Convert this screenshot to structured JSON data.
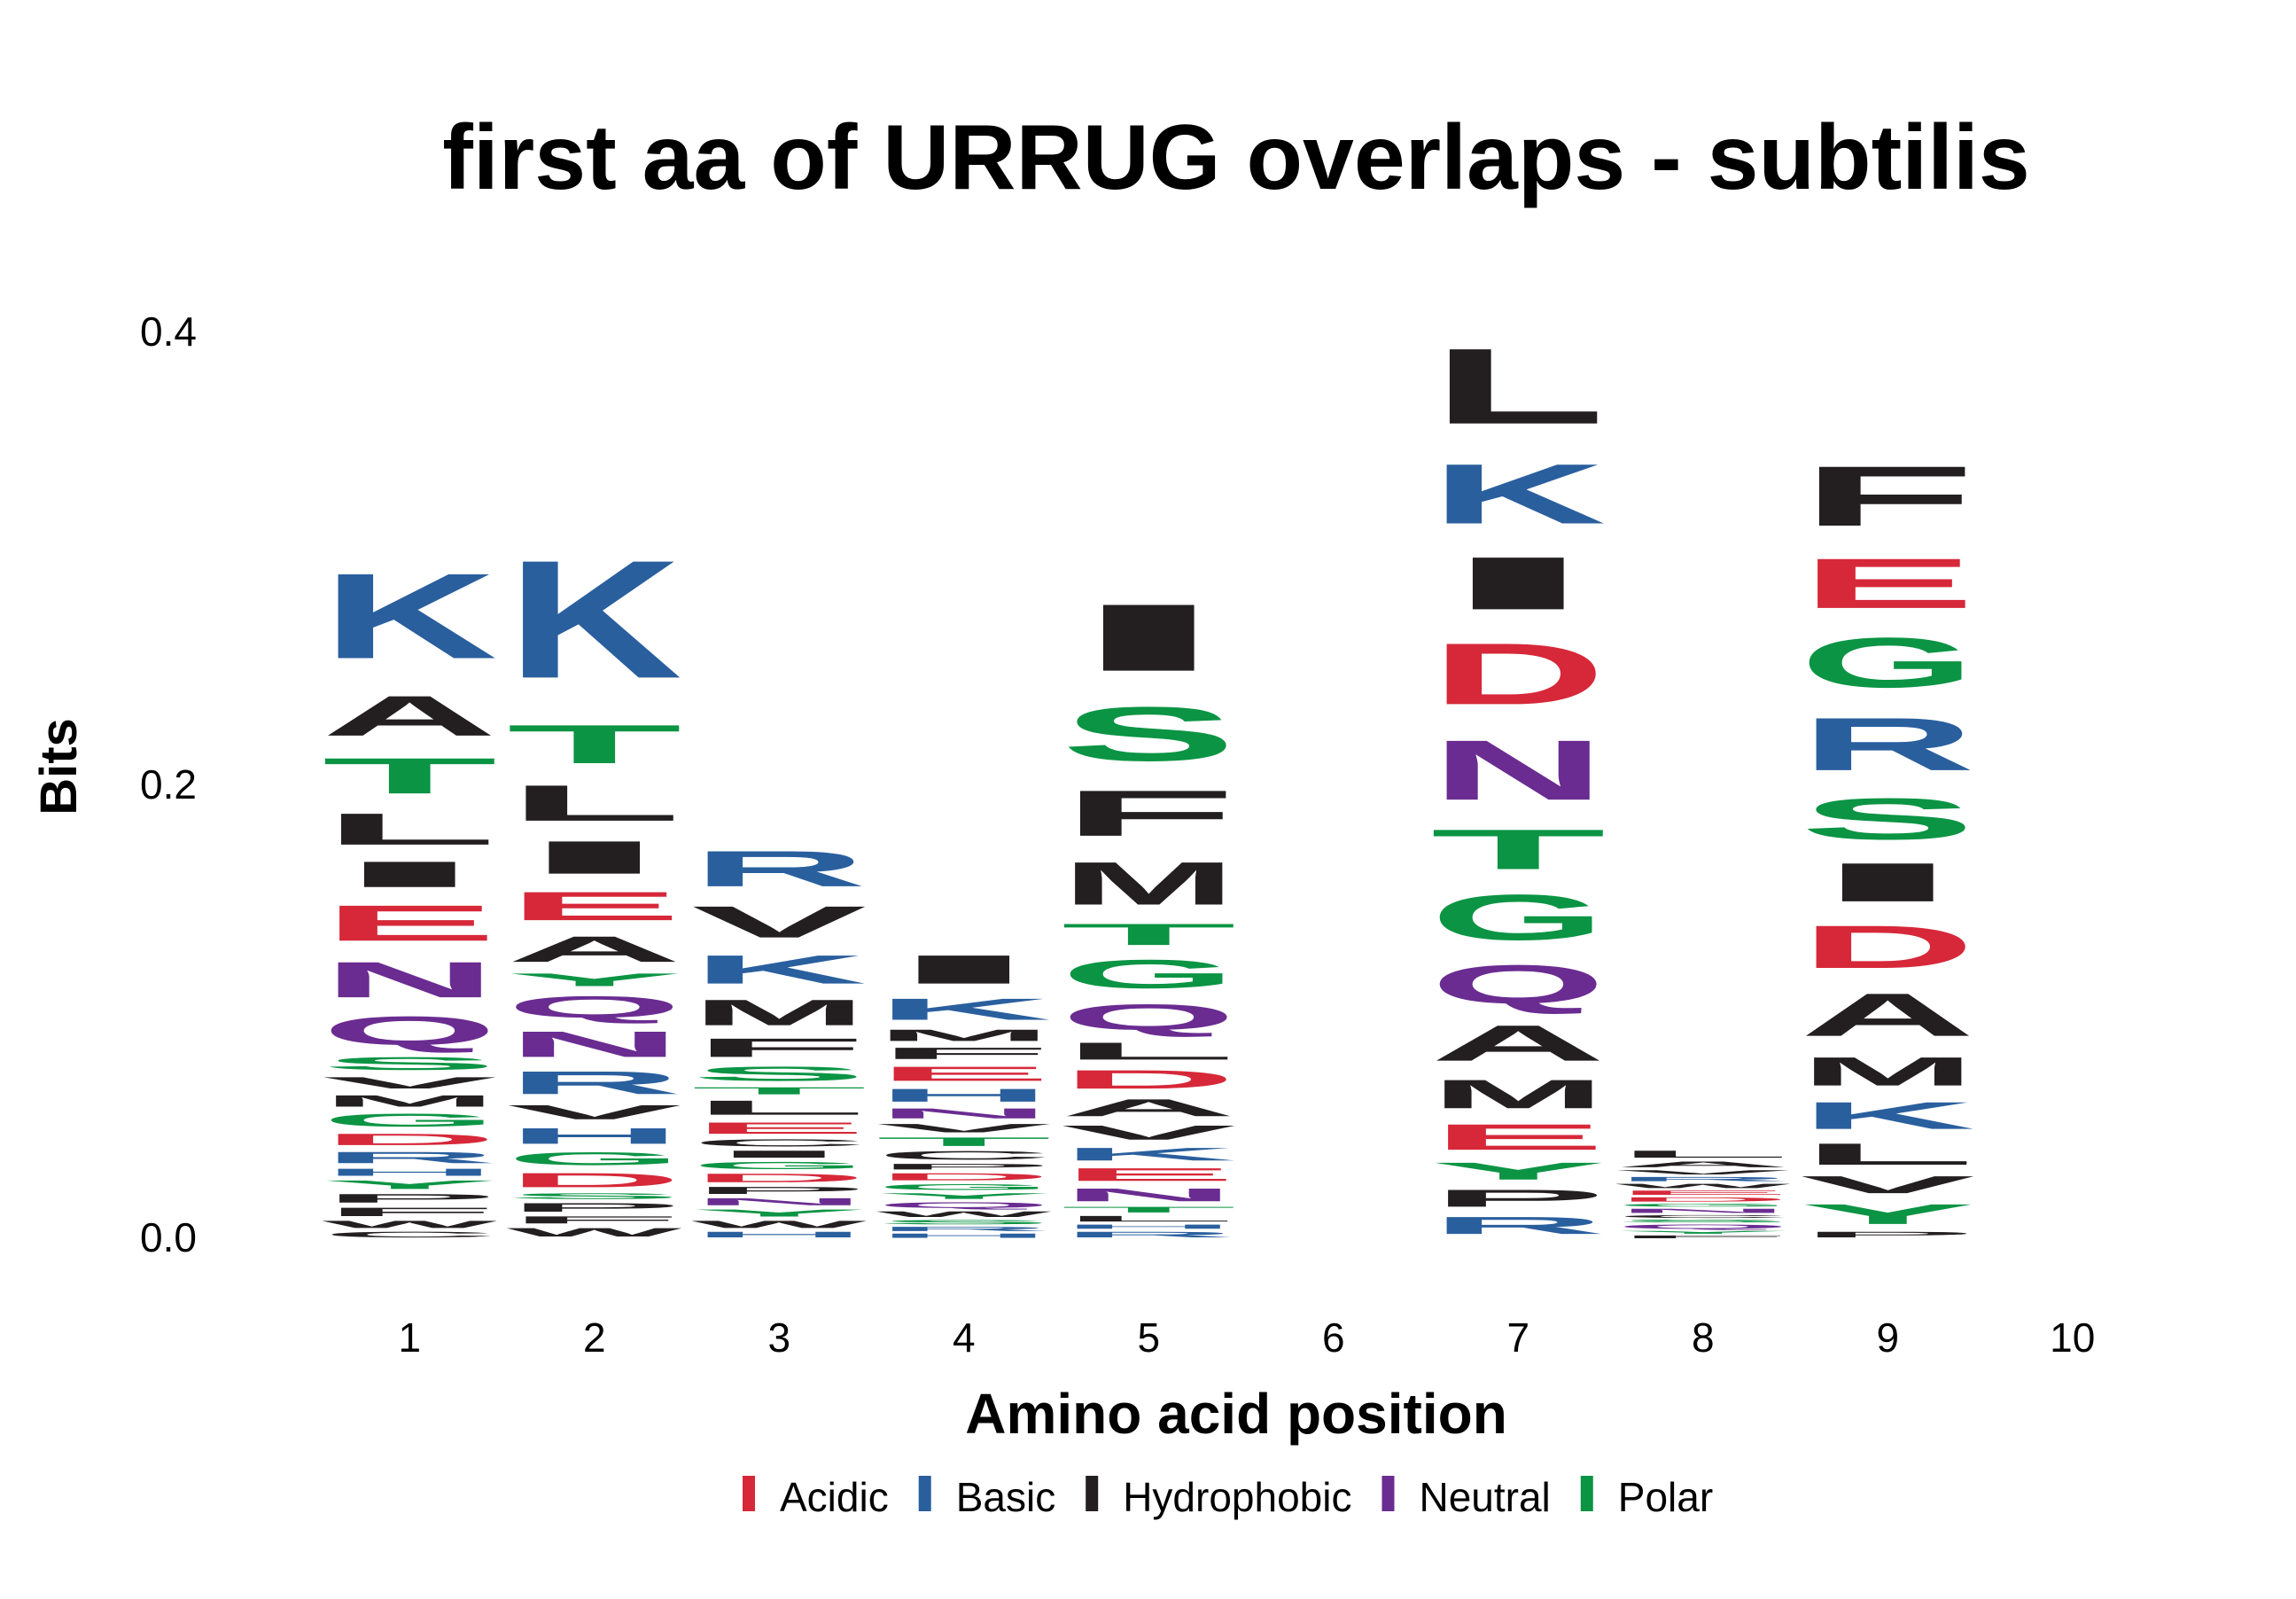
{
  "chart_data": {
    "type": "sequence-logo",
    "title": "first aa of URRUG overlaps - subtilis",
    "xlabel": "Amino acid position",
    "ylabel": "Bits",
    "ylim": [
      0,
      0.42
    ],
    "y_ticks": [
      "0.0",
      "0.2",
      "0.4"
    ],
    "y_tick_values": [
      0.0,
      0.2,
      0.4
    ],
    "x_ticks": [
      "1",
      "2",
      "3",
      "4",
      "5",
      "6",
      "7",
      "8",
      "9",
      "10"
    ],
    "grid": false,
    "legend_position": "bottom",
    "color_scheme": {
      "Acidic": "#d62839",
      "Basic": "#2a5f9e",
      "Hydrophobic": "#231f20",
      "Neutral": "#6a2c91",
      "Polar": "#0b9444"
    },
    "legend": [
      {
        "label": "Acidic",
        "group": "Acidic"
      },
      {
        "label": "Basic",
        "group": "Basic"
      },
      {
        "label": "Hydrophobic",
        "group": "Hydrophobic"
      },
      {
        "label": "Neutral",
        "group": "Neutral"
      },
      {
        "label": "Polar",
        "group": "Polar"
      }
    ],
    "letter_groups": {
      "D": "Acidic",
      "E": "Acidic",
      "H": "Basic",
      "K": "Basic",
      "R": "Basic",
      "A": "Hydrophobic",
      "C": "Hydrophobic",
      "F": "Hydrophobic",
      "I": "Hydrophobic",
      "L": "Hydrophobic",
      "M": "Hydrophobic",
      "P": "Hydrophobic",
      "V": "Hydrophobic",
      "W": "Hydrophobic",
      "N": "Neutral",
      "Q": "Neutral",
      "G": "Polar",
      "S": "Polar",
      "T": "Polar",
      "Y": "Polar"
    },
    "positions": [
      {
        "pos": 1,
        "letters": [
          [
            "C",
            0.004
          ],
          [
            "W",
            0.005
          ],
          [
            "F",
            0.006
          ],
          [
            "P",
            0.006
          ],
          [
            "Y",
            0.006
          ],
          [
            "H",
            0.005
          ],
          [
            "R",
            0.008
          ],
          [
            "D",
            0.008
          ],
          [
            "G",
            0.009
          ],
          [
            "M",
            0.008
          ],
          [
            "V",
            0.008
          ],
          [
            "S",
            0.009
          ],
          [
            "Q",
            0.02
          ],
          [
            "N",
            0.025
          ],
          [
            "E",
            0.025
          ],
          [
            "I",
            0.018
          ],
          [
            "L",
            0.022
          ],
          [
            "T",
            0.025
          ],
          [
            "A",
            0.028
          ],
          [
            "K",
            0.06
          ]
        ]
      },
      {
        "pos": 2,
        "letters": [
          [
            "W",
            0.006
          ],
          [
            "F",
            0.005
          ],
          [
            "P",
            0.006
          ],
          [
            "S",
            0.004
          ],
          [
            "D",
            0.01
          ],
          [
            "G",
            0.009
          ],
          [
            "H",
            0.011
          ],
          [
            "V",
            0.01
          ],
          [
            "R",
            0.016
          ],
          [
            "N",
            0.018
          ],
          [
            "Q",
            0.015
          ],
          [
            "Y",
            0.009
          ],
          [
            "A",
            0.018
          ],
          [
            "E",
            0.02
          ],
          [
            "I",
            0.023
          ],
          [
            "L",
            0.025
          ],
          [
            "T",
            0.027
          ],
          [
            "K",
            0.083
          ]
        ]
      },
      {
        "pos": 3,
        "letters": [
          [
            "H",
            0.004
          ],
          [
            "W",
            0.005
          ],
          [
            "Y",
            0.005
          ],
          [
            "N",
            0.005
          ],
          [
            "P",
            0.005
          ],
          [
            "D",
            0.006
          ],
          [
            "G",
            0.005
          ],
          [
            "I",
            0.005
          ],
          [
            "C",
            0.005
          ],
          [
            "E",
            0.008
          ],
          [
            "L",
            0.01
          ],
          [
            "T",
            0.005
          ],
          [
            "S",
            0.01
          ],
          [
            "F",
            0.013
          ],
          [
            "M",
            0.018
          ],
          [
            "K",
            0.02
          ],
          [
            "V",
            0.022
          ],
          [
            "R",
            0.025
          ]
        ]
      },
      {
        "pos": 4,
        "letters": [
          [
            "H",
            0.003
          ],
          [
            "R",
            0.003
          ],
          [
            "S",
            0.003
          ],
          [
            "W",
            0.004
          ],
          [
            "Q",
            0.004
          ],
          [
            "Y",
            0.004
          ],
          [
            "G",
            0.004
          ],
          [
            "D",
            0.005
          ],
          [
            "P",
            0.004
          ],
          [
            "C",
            0.006
          ],
          [
            "T",
            0.006
          ],
          [
            "V",
            0.006
          ],
          [
            "N",
            0.007
          ],
          [
            "H",
            0.009
          ],
          [
            "E",
            0.01
          ],
          [
            "F",
            0.008
          ],
          [
            "M",
            0.008
          ],
          [
            "K",
            0.015
          ],
          [
            "I",
            0.02
          ]
        ]
      },
      {
        "pos": 5,
        "letters": [
          [
            "R",
            0.004
          ],
          [
            "H",
            0.003
          ],
          [
            "L",
            0.004
          ],
          [
            "T",
            0.004
          ],
          [
            "N",
            0.009
          ],
          [
            "E",
            0.009
          ],
          [
            "K",
            0.009
          ],
          [
            "V",
            0.01
          ],
          [
            "A",
            0.012
          ],
          [
            "D",
            0.013
          ],
          [
            "L",
            0.012
          ],
          [
            "Q",
            0.018
          ],
          [
            "G",
            0.02
          ],
          [
            "T",
            0.015
          ],
          [
            "M",
            0.03
          ],
          [
            "F",
            0.032
          ],
          [
            "S",
            0.038
          ],
          [
            "I",
            0.047
          ]
        ]
      },
      {
        "pos": 6,
        "letters": []
      },
      {
        "pos": 7,
        "letters": [
          [
            "R",
            0.012
          ],
          [
            "P",
            0.012
          ],
          [
            "Y",
            0.012
          ],
          [
            "E",
            0.018
          ],
          [
            "M",
            0.02
          ],
          [
            "A",
            0.025
          ],
          [
            "Q",
            0.027
          ],
          [
            "G",
            0.032
          ],
          [
            "T",
            0.028
          ],
          [
            "N",
            0.042
          ],
          [
            "D",
            0.043
          ],
          [
            "I",
            0.037
          ],
          [
            "K",
            0.042
          ],
          [
            "L",
            0.053
          ]
        ]
      },
      {
        "pos": 8,
        "letters": [
          [
            "F",
            0.002
          ],
          [
            "Y",
            0.002
          ],
          [
            "Q",
            0.003
          ],
          [
            "S",
            0.002
          ],
          [
            "C",
            0.002
          ],
          [
            "N",
            0.003
          ],
          [
            "G",
            0.002
          ],
          [
            "D",
            0.003
          ],
          [
            "E",
            0.003
          ],
          [
            "W",
            0.003
          ],
          [
            "R",
            0.003
          ],
          [
            "V",
            0.003
          ],
          [
            "A",
            0.004
          ],
          [
            "L",
            0.005
          ]
        ]
      },
      {
        "pos": 9,
        "letters": [
          [
            "P",
            0.004
          ],
          [
            "Y",
            0.014
          ],
          [
            "V",
            0.012
          ],
          [
            "L",
            0.015
          ],
          [
            "K",
            0.019
          ],
          [
            "M",
            0.02
          ],
          [
            "A",
            0.03
          ],
          [
            "D",
            0.03
          ],
          [
            "I",
            0.027
          ],
          [
            "S",
            0.029
          ],
          [
            "R",
            0.037
          ],
          [
            "G",
            0.035
          ],
          [
            "E",
            0.035
          ],
          [
            "F",
            0.042
          ]
        ]
      },
      {
        "pos": 10,
        "letters": []
      }
    ]
  }
}
